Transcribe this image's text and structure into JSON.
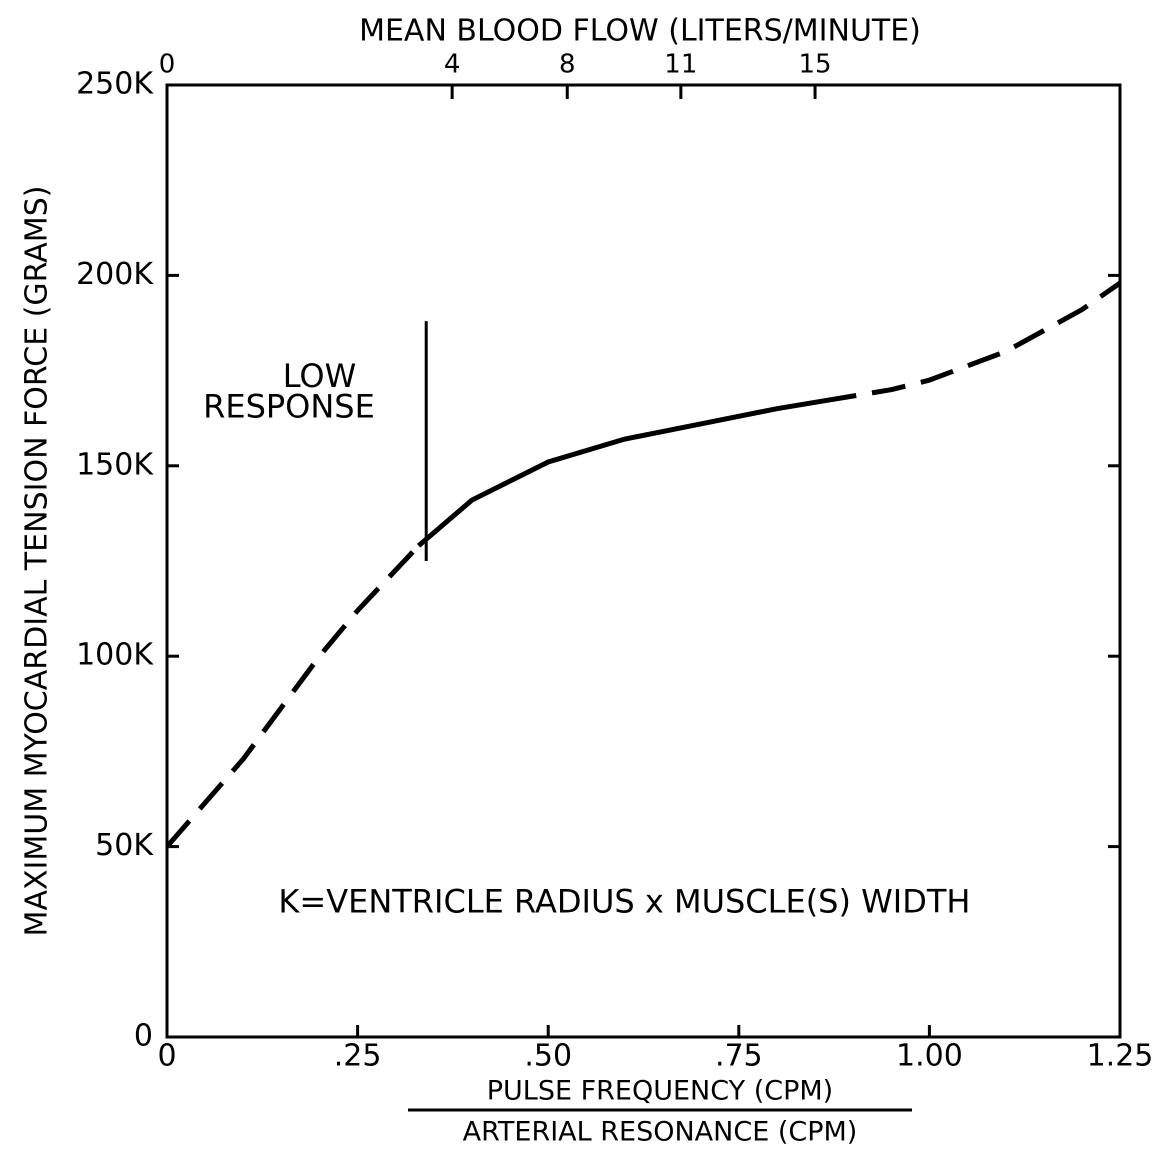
{
  "chart_data": {
    "type": "line",
    "title": "MEAN BLOOD FLOW (LITERS/MINUTE)",
    "y_label": "MAXIMUM MYOCARDIAL TENSION FORCE (GRAMS)",
    "x_label_numerator": "PULSE FREQUENCY (CPM)",
    "x_label_denominator": "ARTERIAL RESONANCE (CPM)",
    "xlim": [
      0,
      1.25
    ],
    "ylim": [
      0,
      250
    ],
    "xticks": [
      0,
      {
        "value": 0.25,
        "label": ".25"
      },
      {
        "value": 0.5,
        "label": ".50"
      },
      {
        "value": 0.75,
        "label": ".75"
      },
      {
        "value": 1.0,
        "label": "1.00"
      },
      {
        "value": 1.25,
        "label": "1.25"
      }
    ],
    "yticks": [
      0,
      {
        "value": 50,
        "label": "50K"
      },
      {
        "value": 100,
        "label": "100K"
      },
      {
        "value": 150,
        "label": "150K"
      },
      {
        "value": 200,
        "label": "200K"
      },
      {
        "value": 250,
        "label": "250K"
      }
    ],
    "x2ticks": [
      0,
      4,
      8,
      11,
      15
    ],
    "x2tick_at": [
      0,
      0.374,
      0.525,
      0.674,
      0.85
    ],
    "color": "#000000",
    "series": [
      {
        "dashed": true,
        "x": [
          0,
          0.1,
          0.2,
          0.25,
          0.33
        ],
        "values": [
          50,
          73,
          100,
          112,
          129
        ]
      },
      {
        "dashed": false,
        "x": [
          0.33,
          0.4,
          0.5,
          0.6,
          0.7,
          0.8,
          0.86
        ],
        "values": [
          129,
          141,
          151,
          157,
          161,
          165,
          167
        ]
      },
      {
        "dashed": true,
        "x": [
          0.86,
          0.95,
          1.0,
          1.1,
          1.2,
          1.25
        ],
        "values": [
          167,
          170,
          172.5,
          180,
          191,
          198
        ]
      }
    ],
    "vline": {
      "x": 0.34,
      "y": [
        125,
        188
      ]
    },
    "annotations": [
      {
        "text": "LOW",
        "x": 0.2,
        "y": 173
      },
      {
        "text": "RESPONSE",
        "x": 0.16,
        "y": 165
      },
      {
        "text": "K=VENTRICLE RADIUS x MUSCLE(S) WIDTH",
        "x": 0.6,
        "y": 35
      }
    ]
  }
}
